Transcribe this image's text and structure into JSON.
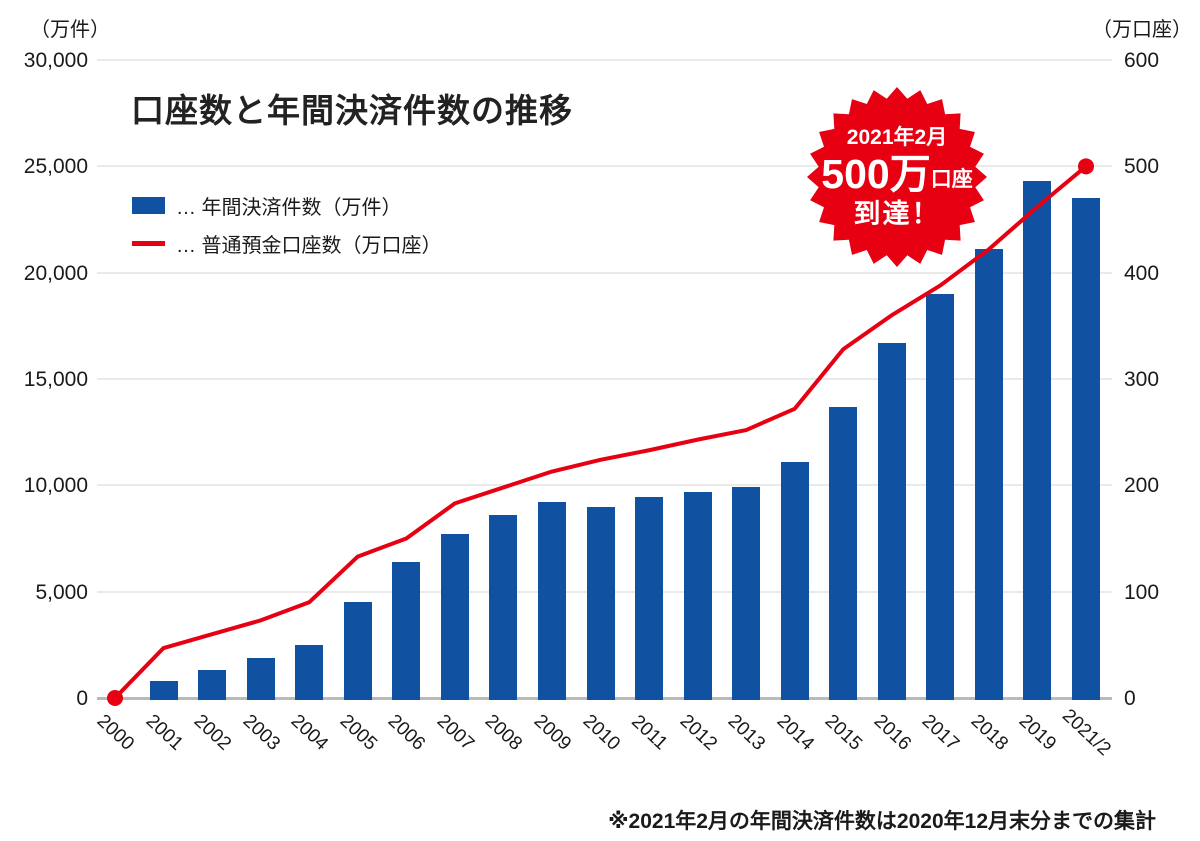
{
  "title": "口座数と年間決済件数の推移",
  "left_axis": {
    "unit": "（万件）",
    "ticks": [
      "0",
      "5,000",
      "10,000",
      "15,000",
      "20,000",
      "25,000",
      "30,000"
    ]
  },
  "right_axis": {
    "unit": "（万口座）",
    "ticks": [
      "0",
      "100",
      "200",
      "300",
      "400",
      "500",
      "600"
    ]
  },
  "legend": {
    "items": [
      {
        "label": "… 年間決済件数（万件）",
        "type": "bar"
      },
      {
        "label": "… 普通預金口座数（万口座）",
        "type": "line"
      }
    ]
  },
  "badge": {
    "line1": "2021年2月",
    "big": "500万",
    "small": "口座",
    "line3": "到達！"
  },
  "footnote": "※2021年2月の年間決済件数は2020年12月末分までの集計",
  "colors": {
    "bar": "#1151A2",
    "line": "#E60012",
    "grid": "#EAEAEA",
    "baseline": "#B9B9B9",
    "badge": "#E60012"
  },
  "chart_data": {
    "type": "bar+line",
    "categories": [
      "2000",
      "2001",
      "2002",
      "2003",
      "2004",
      "2005",
      "2006",
      "2007",
      "2008",
      "2009",
      "2010",
      "2011",
      "2012",
      "2013",
      "2014",
      "2015",
      "2016",
      "2017",
      "2018",
      "2019",
      "2021/2"
    ],
    "series": [
      {
        "name": "年間決済件数（万件）",
        "type": "bar",
        "axis": "left",
        "color": "#1151A2",
        "values": [
          null,
          800,
          1300,
          1900,
          2500,
          4500,
          6400,
          7700,
          8600,
          9200,
          9000,
          9450,
          9700,
          9900,
          11100,
          13700,
          16700,
          19000,
          21100,
          24300,
          23500
        ]
      },
      {
        "name": "普通預金口座数（万口座）",
        "type": "line",
        "axis": "right",
        "color": "#E60012",
        "values": [
          0,
          47,
          60,
          73,
          90,
          133,
          150,
          183,
          198,
          213,
          224,
          233,
          243,
          252,
          272,
          328,
          360,
          388,
          422,
          462,
          500
        ],
        "end_markers": true
      }
    ],
    "left_ylim": [
      0,
      30000
    ],
    "right_ylim": [
      0,
      600
    ],
    "grid": true,
    "legend_position": "top-left",
    "annotation": "2021年2月 500万口座 到達！"
  }
}
